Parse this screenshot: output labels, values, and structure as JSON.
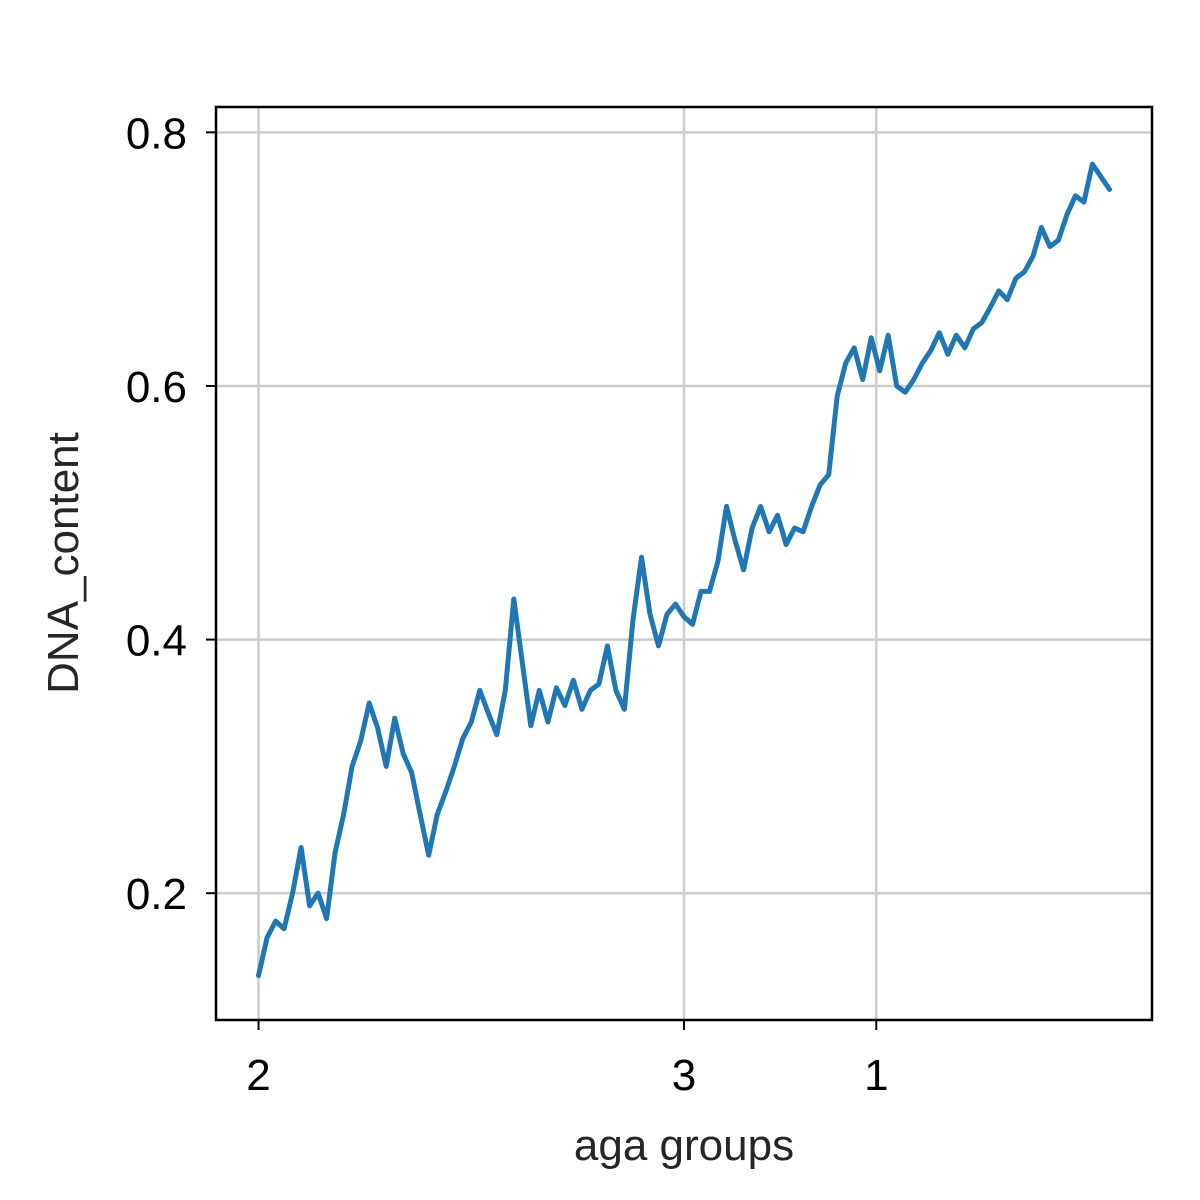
{
  "chart_data": {
    "type": "line",
    "title": "",
    "xlabel": "aga groups",
    "ylabel": "DNA_content",
    "x_ticks": [
      {
        "label": "2",
        "position": 0
      },
      {
        "label": "3",
        "position": 0.5
      },
      {
        "label": "1",
        "position": 0.726
      }
    ],
    "xlim": [
      -0.05,
      1.05
    ],
    "ylim": [
      0.1,
      0.82
    ],
    "y_ticks": [
      {
        "value": 0.2,
        "label": "0.2"
      },
      {
        "value": 0.4,
        "label": "0.4"
      },
      {
        "value": 0.6,
        "label": "0.6"
      },
      {
        "value": 0.8,
        "label": "0.8"
      }
    ],
    "grid": true,
    "series": [
      {
        "color": "#1f77b4",
        "x": [
          0.0,
          0.01,
          0.02,
          0.03,
          0.04,
          0.05,
          0.06,
          0.07,
          0.08,
          0.09,
          0.1,
          0.11,
          0.12,
          0.13,
          0.14,
          0.15,
          0.16,
          0.17,
          0.18,
          0.19,
          0.2,
          0.21,
          0.22,
          0.23,
          0.24,
          0.25,
          0.26,
          0.27,
          0.28,
          0.29,
          0.3,
          0.31,
          0.32,
          0.33,
          0.34,
          0.35,
          0.36,
          0.37,
          0.38,
          0.39,
          0.4,
          0.41,
          0.42,
          0.43,
          0.44,
          0.45,
          0.46,
          0.47,
          0.48,
          0.49,
          0.5,
          0.51,
          0.52,
          0.53,
          0.54,
          0.55,
          0.56,
          0.57,
          0.58,
          0.59,
          0.6,
          0.61,
          0.62,
          0.63,
          0.64,
          0.65,
          0.66,
          0.67,
          0.68,
          0.69,
          0.7,
          0.71,
          0.72,
          0.73,
          0.74,
          0.75,
          0.76,
          0.77,
          0.78,
          0.79,
          0.8,
          0.81,
          0.82,
          0.83,
          0.84,
          0.85,
          0.86,
          0.87,
          0.88,
          0.89,
          0.9,
          0.91,
          0.92,
          0.93,
          0.94,
          0.95,
          0.96,
          0.97,
          0.98,
          0.99,
          1.0
        ],
        "values": [
          0.135,
          0.165,
          0.178,
          0.172,
          0.2,
          0.236,
          0.19,
          0.2,
          0.18,
          0.232,
          0.262,
          0.3,
          0.32,
          0.35,
          0.33,
          0.3,
          0.338,
          0.31,
          0.295,
          0.262,
          0.23,
          0.262,
          0.28,
          0.3,
          0.322,
          0.335,
          0.36,
          0.342,
          0.325,
          0.36,
          0.432,
          0.382,
          0.332,
          0.36,
          0.335,
          0.362,
          0.348,
          0.368,
          0.345,
          0.36,
          0.365,
          0.395,
          0.36,
          0.345,
          0.415,
          0.465,
          0.42,
          0.395,
          0.42,
          0.428,
          0.418,
          0.412,
          0.438,
          0.438,
          0.462,
          0.505,
          0.478,
          0.455,
          0.488,
          0.505,
          0.485,
          0.498,
          0.475,
          0.488,
          0.485,
          0.505,
          0.522,
          0.53,
          0.592,
          0.618,
          0.63,
          0.605,
          0.638,
          0.612,
          0.64,
          0.6,
          0.595,
          0.605,
          0.618,
          0.628,
          0.642,
          0.625,
          0.64,
          0.63,
          0.645,
          0.65,
          0.662,
          0.675,
          0.668,
          0.685,
          0.69,
          0.702,
          0.725,
          0.71,
          0.715,
          0.735,
          0.75,
          0.745,
          0.775,
          0.765,
          0.755
        ]
      }
    ]
  }
}
